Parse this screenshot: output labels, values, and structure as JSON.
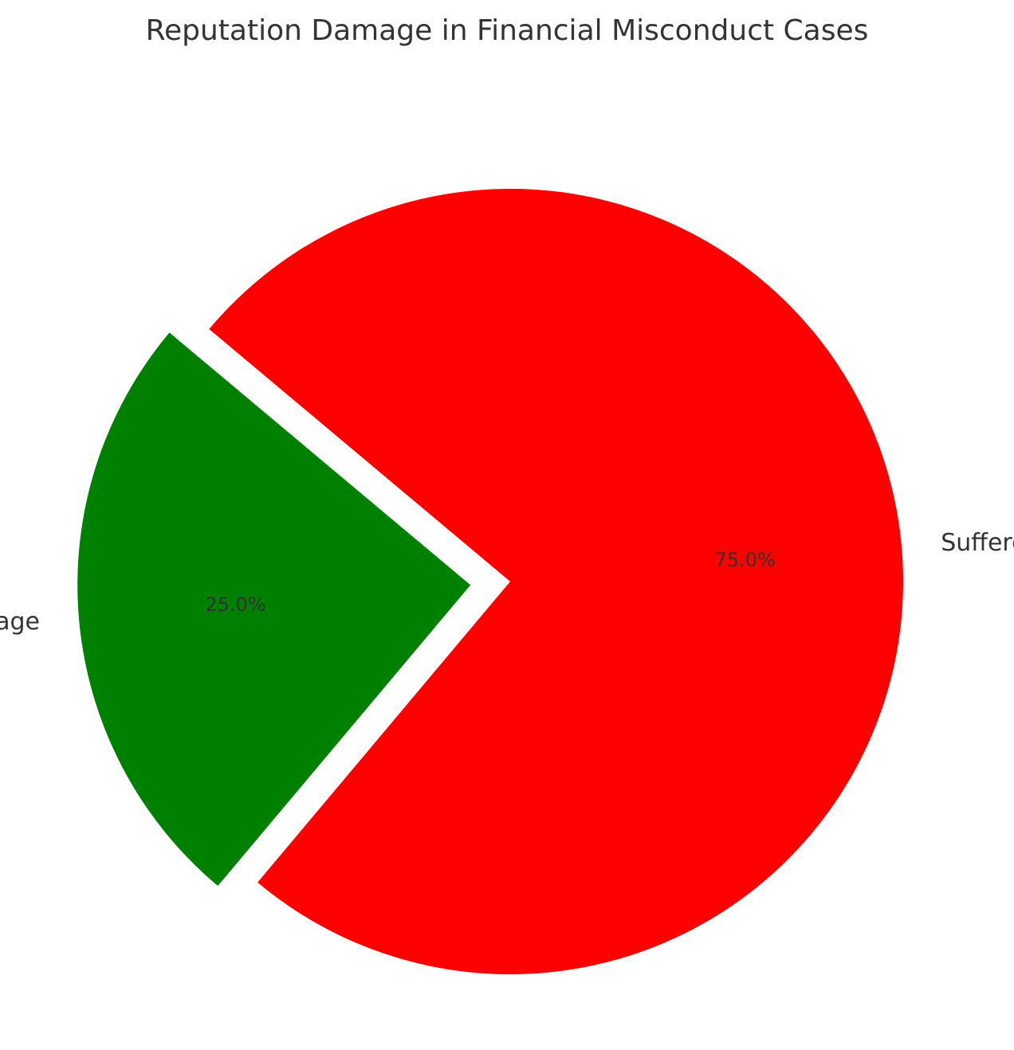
{
  "chart_data": {
    "type": "pie",
    "title": "Reputation Damage in Financial Misconduct Cases",
    "slices": [
      {
        "label": "Suffered Reputation Damage",
        "value": 75.0,
        "pct_label": "75.0%",
        "color": "#ff0000",
        "exploded": false
      },
      {
        "label": "No Reputation Damage",
        "value": 25.0,
        "pct_label": "25.0%",
        "color": "#008000",
        "exploded": true
      }
    ],
    "start_angle_deg": 140,
    "legend": "none"
  }
}
